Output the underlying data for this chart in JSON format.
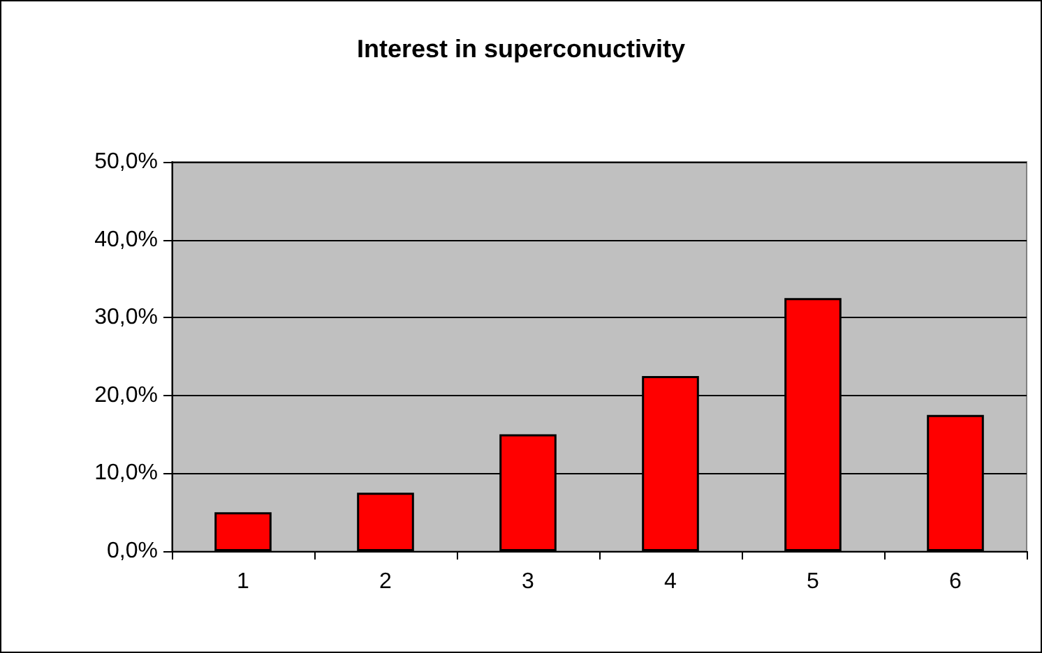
{
  "chart_data": {
    "type": "bar",
    "title": "Interest in superconuctivity",
    "categories": [
      "1",
      "2",
      "3",
      "4",
      "5",
      "6"
    ],
    "values": [
      5,
      7.5,
      15,
      22.5,
      32.5,
      17.5
    ],
    "color": "#ff0000",
    "ylim": [
      0,
      50
    ],
    "yticks": [
      {
        "value": 0,
        "label": "0,0%"
      },
      {
        "value": 10,
        "label": "10,0%"
      },
      {
        "value": 20,
        "label": "20,0%"
      },
      {
        "value": 30,
        "label": "30,0%"
      },
      {
        "value": 40,
        "label": "40,0%"
      },
      {
        "value": 50,
        "label": "50,0%"
      }
    ],
    "grid": "y"
  }
}
